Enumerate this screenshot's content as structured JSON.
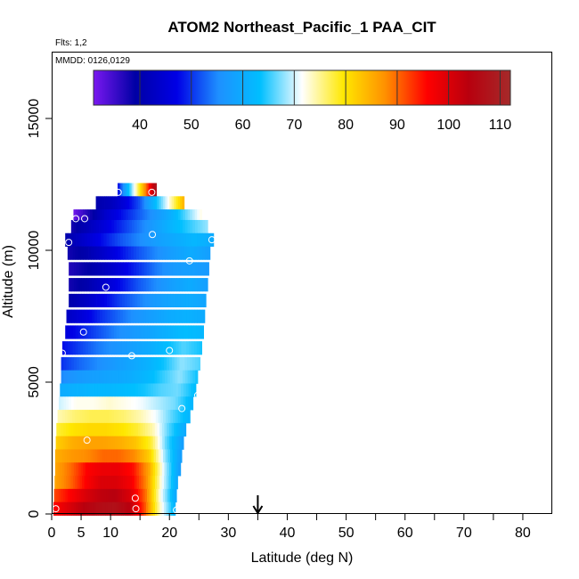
{
  "chart_data": {
    "type": "heatmap",
    "title": "ATOM2 Northeast_Pacific_1 PAA_CIT",
    "flights_note": "Flts: 1,2",
    "date_note": "MMDD: 0126,0129",
    "xlabel": "Latitude (deg N)",
    "ylabel": "Altitude (m)",
    "xlim": [
      0,
      85
    ],
    "ylim": [
      0,
      17500
    ],
    "x_ticks": [
      0,
      5,
      10,
      20,
      30,
      40,
      50,
      60,
      70,
      80
    ],
    "y_ticks": [
      0,
      5000,
      10000,
      15000
    ],
    "colorbar": {
      "range": [
        31,
        112
      ],
      "ticks": [
        40,
        50,
        60,
        70,
        80,
        90,
        100,
        110
      ],
      "colors": [
        "#7a18f0",
        "#0000a5",
        "#0000e6",
        "#1e90ff",
        "#00bfff",
        "#ffffff",
        "#ffe800",
        "#ff9000",
        "#ff0000",
        "#b8000e",
        "#a52a2a"
      ]
    },
    "marker": {
      "x": 35,
      "label": "down-arrow"
    },
    "profile": [
      {
        "alt": 12300,
        "xmin": 11.2,
        "xmax": 17.8,
        "values": [
          48,
          62,
          75,
          90,
          108
        ]
      },
      {
        "alt": 11800,
        "xmin": 7.5,
        "xmax": 22.5,
        "values": [
          40,
          42,
          46,
          52,
          62,
          72,
          84
        ]
      },
      {
        "alt": 11300,
        "xmin": 3.7,
        "xmax": 25.5,
        "values": [
          32,
          38,
          44,
          48,
          52,
          56,
          60,
          66,
          72
        ]
      },
      {
        "alt": 10900,
        "xmin": 3.3,
        "xmax": 26.5,
        "values": [
          38,
          42,
          46,
          50,
          54,
          58,
          62,
          65,
          68
        ]
      },
      {
        "alt": 10400,
        "xmin": 2.3,
        "xmax": 27.5,
        "values": [
          40,
          44,
          48,
          52,
          55,
          58,
          60,
          62,
          60
        ]
      },
      {
        "alt": 9900,
        "xmin": 2.7,
        "xmax": 26.9,
        "values": [
          38,
          40,
          44,
          48,
          52,
          55,
          58,
          60,
          58
        ]
      },
      {
        "alt": 9300,
        "xmin": 2.9,
        "xmax": 26.7,
        "values": [
          37,
          39,
          42,
          46,
          50,
          54,
          57,
          58,
          57
        ]
      },
      {
        "alt": 8700,
        "xmin": 2.9,
        "xmax": 26.5,
        "values": [
          38,
          40,
          44,
          48,
          52,
          55,
          58,
          60,
          58
        ]
      },
      {
        "alt": 8100,
        "xmin": 2.9,
        "xmax": 26.2,
        "values": [
          40,
          43,
          47,
          51,
          54,
          57,
          59,
          60,
          59
        ]
      },
      {
        "alt": 7500,
        "xmin": 2.5,
        "xmax": 26.0,
        "values": [
          43,
          46,
          50,
          53,
          56,
          58,
          60,
          61,
          60
        ]
      },
      {
        "alt": 6900,
        "xmin": 2.3,
        "xmax": 25.8,
        "values": [
          46,
          49,
          52,
          55,
          57,
          59,
          61,
          63,
          62
        ]
      },
      {
        "alt": 6300,
        "xmin": 1.8,
        "xmax": 25.5,
        "values": [
          48,
          51,
          54,
          56,
          58,
          60,
          63,
          66,
          64
        ]
      },
      {
        "alt": 5700,
        "xmin": 1.6,
        "xmax": 25.2,
        "values": [
          50,
          53,
          55,
          57,
          59,
          61,
          64,
          68,
          66
        ]
      },
      {
        "alt": 5200,
        "xmin": 1.6,
        "xmax": 24.8,
        "values": [
          55,
          57,
          58,
          59,
          60,
          62,
          65,
          68,
          64
        ]
      },
      {
        "alt": 4700,
        "xmin": 1.4,
        "xmax": 24.5,
        "values": [
          60,
          61,
          62,
          62,
          63,
          64,
          66,
          67,
          63
        ]
      },
      {
        "alt": 4200,
        "xmin": 1.2,
        "xmax": 24.0,
        "values": [
          70,
          72,
          72,
          73,
          72,
          71,
          69,
          67,
          62
        ]
      },
      {
        "alt": 3700,
        "xmin": 1.0,
        "xmax": 23.5,
        "values": [
          74,
          76,
          77,
          77,
          76,
          74,
          71,
          66,
          62
        ]
      },
      {
        "alt": 3200,
        "xmin": 0.8,
        "xmax": 22.8,
        "values": [
          78,
          80,
          81,
          81,
          80,
          78,
          74,
          66,
          60
        ]
      },
      {
        "alt": 2700,
        "xmin": 0.7,
        "xmax": 22.4,
        "values": [
          82,
          85,
          86,
          86,
          85,
          83,
          78,
          66,
          58
        ]
      },
      {
        "alt": 2200,
        "xmin": 0.6,
        "xmax": 22.1,
        "values": [
          85,
          87,
          88,
          90,
          90,
          88,
          82,
          68,
          58
        ]
      },
      {
        "alt": 1700,
        "xmin": 0.6,
        "xmax": 21.9,
        "values": [
          86,
          90,
          96,
          98,
          98,
          95,
          86,
          70,
          58
        ]
      },
      {
        "alt": 1200,
        "xmin": 0.5,
        "xmax": 21.4,
        "values": [
          86,
          90,
          96,
          100,
          100,
          97,
          88,
          72,
          60
        ]
      },
      {
        "alt": 700,
        "xmin": 0.4,
        "xmax": 21.2,
        "values": [
          92,
          96,
          100,
          103,
          104,
          100,
          90,
          72,
          60
        ]
      },
      {
        "alt": 200,
        "xmin": 0.3,
        "xmax": 21.0,
        "values": [
          96,
          100,
          104,
          106,
          107,
          104,
          92,
          74,
          62
        ]
      }
    ],
    "observations": [
      {
        "lat": 0.7,
        "alt": 200
      },
      {
        "lat": 14.3,
        "alt": 200
      },
      {
        "lat": 21.2,
        "alt": 150
      },
      {
        "lat": 14.2,
        "alt": 600
      },
      {
        "lat": 6.0,
        "alt": 2800
      },
      {
        "lat": 22.1,
        "alt": 4000
      },
      {
        "lat": 24.8,
        "alt": 4500
      },
      {
        "lat": 1.8,
        "alt": 6100
      },
      {
        "lat": 13.6,
        "alt": 6000
      },
      {
        "lat": 20.0,
        "alt": 6200
      },
      {
        "lat": 5.4,
        "alt": 6900
      },
      {
        "lat": 9.2,
        "alt": 8600
      },
      {
        "lat": 23.4,
        "alt": 9600
      },
      {
        "lat": 2.9,
        "alt": 10300
      },
      {
        "lat": 27.2,
        "alt": 10400
      },
      {
        "lat": 17.1,
        "alt": 10600
      },
      {
        "lat": 4.1,
        "alt": 11200
      },
      {
        "lat": 5.6,
        "alt": 11200
      },
      {
        "lat": 11.3,
        "alt": 12200
      },
      {
        "lat": 17.0,
        "alt": 12200
      }
    ]
  }
}
